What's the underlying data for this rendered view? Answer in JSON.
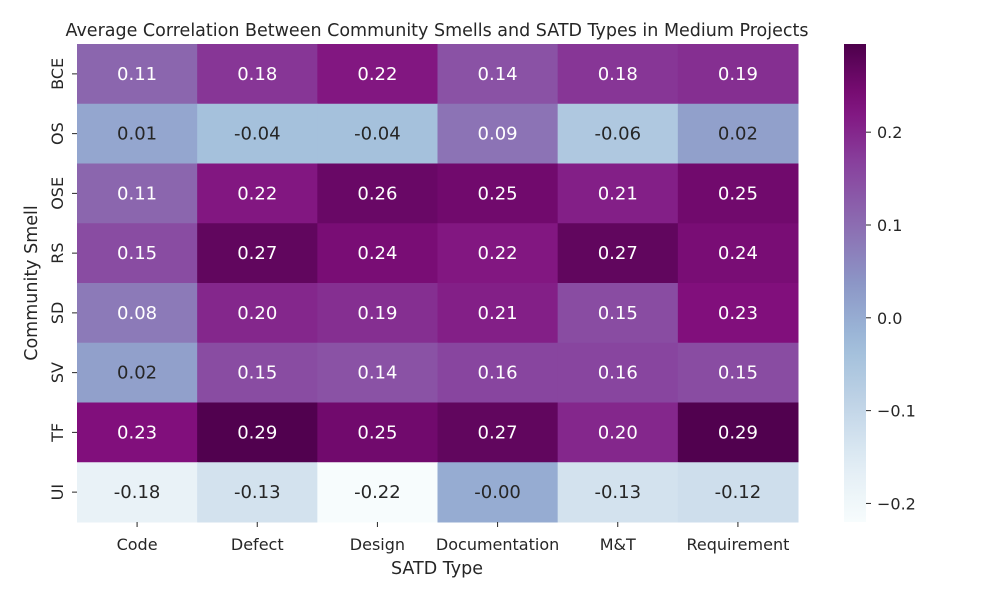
{
  "chart_data": {
    "type": "heatmap",
    "title": "Average Correlation Between Community Smells and SATD Types in Medium Projects",
    "xlabel": "SATD Type",
    "ylabel": "Community Smell",
    "x_categories": [
      "Code",
      "Defect",
      "Design",
      "Documentation",
      "M&T",
      "Requirement"
    ],
    "y_categories": [
      "BCE",
      "OS",
      "OSE",
      "RS",
      "SD",
      "SV",
      "TF",
      "UI"
    ],
    "values": [
      [
        0.11,
        0.18,
        0.22,
        0.14,
        0.18,
        0.19
      ],
      [
        0.01,
        -0.04,
        -0.04,
        0.09,
        -0.06,
        0.02
      ],
      [
        0.11,
        0.22,
        0.26,
        0.25,
        0.21,
        0.25
      ],
      [
        0.15,
        0.27,
        0.24,
        0.22,
        0.27,
        0.24
      ],
      [
        0.08,
        0.2,
        0.19,
        0.21,
        0.15,
        0.23
      ],
      [
        0.02,
        0.15,
        0.14,
        0.16,
        0.16,
        0.15
      ],
      [
        0.23,
        0.29,
        0.25,
        0.27,
        0.2,
        0.29
      ],
      [
        -0.18,
        -0.13,
        -0.22,
        -0.0,
        -0.13,
        -0.12
      ]
    ],
    "value_labels": [
      [
        "0.11",
        "0.18",
        "0.22",
        "0.14",
        "0.18",
        "0.19"
      ],
      [
        "0.01",
        "-0.04",
        "-0.04",
        "0.09",
        "-0.06",
        "0.02"
      ],
      [
        "0.11",
        "0.22",
        "0.26",
        "0.25",
        "0.21",
        "0.25"
      ],
      [
        "0.15",
        "0.27",
        "0.24",
        "0.22",
        "0.27",
        "0.24"
      ],
      [
        "0.08",
        "0.20",
        "0.19",
        "0.21",
        "0.15",
        "0.23"
      ],
      [
        "0.02",
        "0.15",
        "0.14",
        "0.16",
        "0.16",
        "0.15"
      ],
      [
        "0.23",
        "0.29",
        "0.25",
        "0.27",
        "0.20",
        "0.29"
      ],
      [
        "-0.18",
        "-0.13",
        "-0.22",
        "-0.00",
        "-0.13",
        "-0.12"
      ]
    ],
    "colormap": "BuPu",
    "vmin": -0.22,
    "vmax": 0.295,
    "colorbar_ticks": [
      0.2,
      0.1,
      0.0,
      -0.1,
      -0.2
    ],
    "colorbar_tick_labels": [
      "0.2",
      "0.1",
      "0.0",
      "−0.1",
      "−0.2"
    ],
    "grid": false,
    "legend": "colorbar-right"
  }
}
